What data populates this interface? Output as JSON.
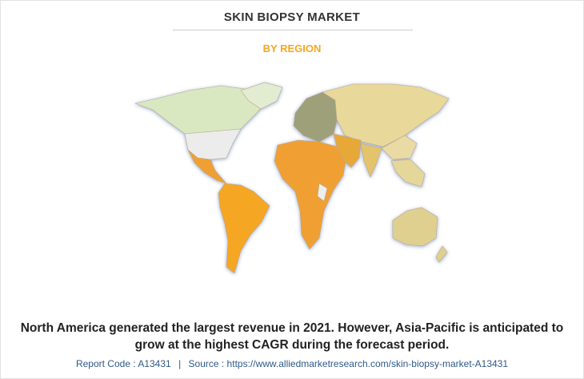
{
  "header": {
    "title": "SKIN BIOPSY MARKET",
    "subtitle": "BY REGION"
  },
  "description": "North America generated the largest revenue in 2021. However, Asia-Pacific is anticipated to grow at the highest CAGR during the forecast period.",
  "footer": {
    "report_code": "Report Code : A13431",
    "separator": "|",
    "source": "Source : https://www.alliedmarketresearch.com/skin-biopsy-market-A13431"
  }
}
